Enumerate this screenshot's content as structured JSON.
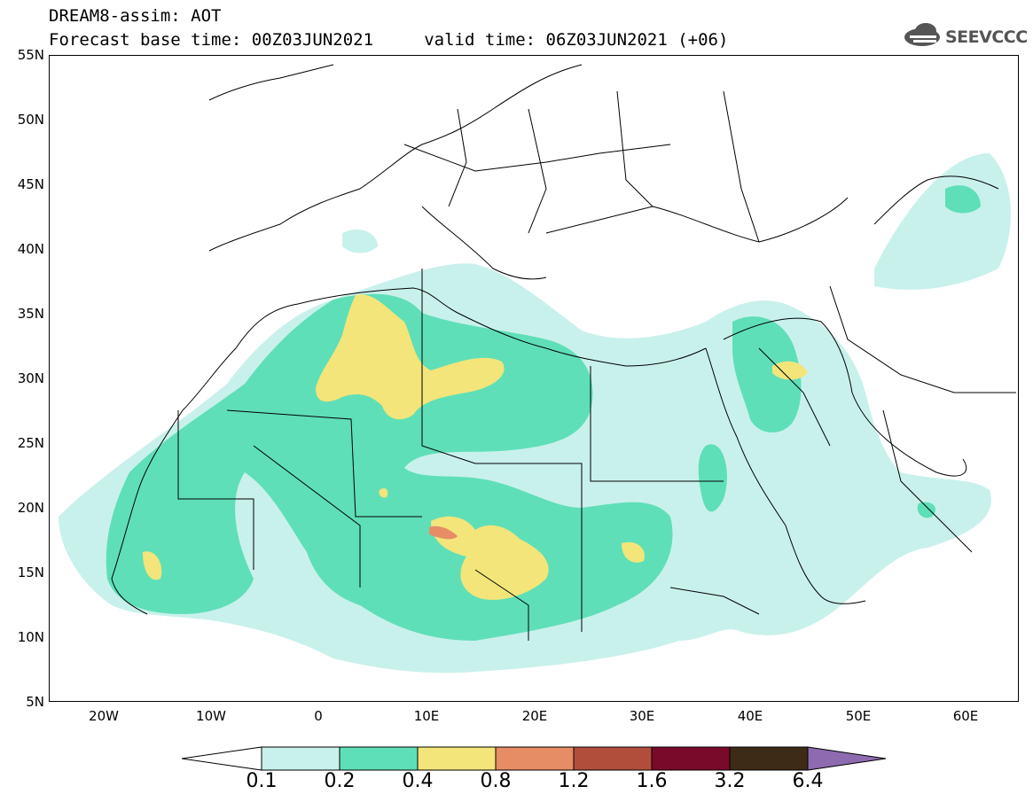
{
  "header": {
    "title_line1": "DREAM8-assim: AOT",
    "title_line2": "Forecast base time: 00Z03JUN2021     valid time: 06Z03JUN2021 (+06)",
    "logo_text": "SEEVCCC"
  },
  "axes": {
    "y_ticks": [
      "55N",
      "50N",
      "45N",
      "40N",
      "35N",
      "30N",
      "25N",
      "20N",
      "15N",
      "10N",
      "5N"
    ],
    "x_ticks": [
      "20W",
      "10W",
      "0",
      "10E",
      "20E",
      "30E",
      "40E",
      "50E",
      "60E"
    ]
  },
  "colorbar": {
    "labels": [
      "0.1",
      "0.2",
      "0.4",
      "0.8",
      "1.2",
      "1.6",
      "3.2",
      "6.4"
    ],
    "colors": [
      "#ffffff",
      "#c9f1eb",
      "#5fdfb7",
      "#f3e57a",
      "#e68d65",
      "#b14e3b",
      "#7a0a2a",
      "#3d2a17",
      "#8e6ab0"
    ]
  },
  "map_colors": {
    "aot_0_1": "#c9f1eb",
    "aot_0_2": "#5fdfb7",
    "aot_0_4": "#f3e57a",
    "aot_0_8": "#e68d65",
    "coastline": "#000000"
  }
}
